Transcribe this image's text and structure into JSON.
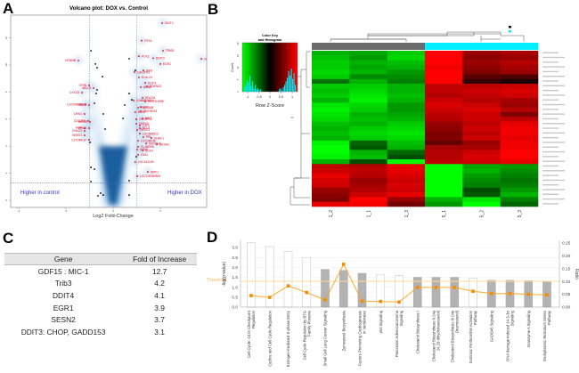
{
  "panels": {
    "a": "A",
    "b": "B",
    "c": "C",
    "d": "D"
  },
  "chart_data": [
    {
      "type": "scatter",
      "title": "Volcano plot: DOX vs. Control",
      "xlabel": "Log2 Fold-Change",
      "ylabel": "",
      "xlim": [
        -4.3,
        4
      ],
      "ylim": [
        -0.3,
        13.9
      ],
      "x_ticks": [
        -4,
        -2,
        0,
        2
      ],
      "y_ticks": [
        0,
        2,
        4,
        6,
        8,
        10,
        12
      ],
      "thresholds": {
        "log2fc": [
          -1,
          1
        ],
        "y": 1.3
      },
      "annotations": {
        "left": "Higher in control",
        "right": "Higher in DOX"
      },
      "colors": {
        "labeled": "#e0001b",
        "other": "#000000",
        "density": "#1f6fb4",
        "annotation": "#3333cc"
      },
      "labeled_points": [
        {
          "gene": "DDIT4",
          "x": 2.08,
          "y": 13.1
        },
        {
          "gene": "GTS1",
          "x": 1.21,
          "y": 11.8
        },
        {
          "gene": "TRIB3",
          "x": 2.11,
          "y": 11.05
        },
        {
          "gene": "DDIT3",
          "x": 1.7,
          "y": 10.5
        },
        {
          "gene": "PCK2",
          "x": 1.09,
          "y": 10.65
        },
        {
          "gene": "GDF15",
          "x": 3.74,
          "y": 10.45
        },
        {
          "gene": "EGR1",
          "x": 2.0,
          "y": 10.07
        },
        {
          "gene": "IER3",
          "x": 1.28,
          "y": 9.6
        },
        {
          "gene": "GALNTL1",
          "x": 0.91,
          "y": 9.47
        },
        {
          "gene": "KLHL24",
          "x": 1.09,
          "y": 9.08
        },
        {
          "gene": "CLIP3",
          "x": 1.36,
          "y": 8.68
        },
        {
          "gene": "CDKN2D",
          "x": 1.43,
          "y": 8.42
        },
        {
          "gene": "ADM2",
          "x": 1.17,
          "y": 8.36
        },
        {
          "gene": "PDCD4",
          "x": 1.25,
          "y": 7.57
        },
        {
          "gene": "HIST2H2BE",
          "x": 1.36,
          "y": 7.3
        },
        {
          "gene": "GABARAPL1",
          "x": 0.87,
          "y": 7.37
        },
        {
          "gene": "FAM116B",
          "x": 1.06,
          "y": 6.84
        },
        {
          "gene": "HYI",
          "x": 1.17,
          "y": 6.9
        },
        {
          "gene": "ZMYND15",
          "x": 1.17,
          "y": 6.58
        },
        {
          "gene": "BCK2",
          "x": 0.94,
          "y": 6.51
        },
        {
          "gene": "MNT",
          "x": 1.25,
          "y": 6.05
        },
        {
          "gene": "C9ORF41",
          "x": 0.98,
          "y": 5.99
        },
        {
          "gene": "LMTK3",
          "x": 0.98,
          "y": 5.66
        },
        {
          "gene": "TJP3",
          "x": 1.13,
          "y": 5.53
        },
        {
          "gene": "BCL6",
          "x": 1.13,
          "y": 5.33
        },
        {
          "gene": "PROS1",
          "x": 1.02,
          "y": 5.2
        },
        {
          "gene": "LOC645513",
          "x": 1.13,
          "y": 4.93
        },
        {
          "gene": "PPL",
          "x": 1.28,
          "y": 4.67
        },
        {
          "gene": "CHAC1",
          "x": 1.62,
          "y": 4.6
        },
        {
          "gene": "C17ORF39",
          "x": 1.06,
          "y": 4.4
        },
        {
          "gene": "NOTCH2",
          "x": 1.4,
          "y": 4.2
        },
        {
          "gene": "SESN2",
          "x": 1.85,
          "y": 4.14
        },
        {
          "gene": "FLJ46906",
          "x": 1.06,
          "y": 3.95
        },
        {
          "gene": "ASNS",
          "x": 1.02,
          "y": 3.75
        },
        {
          "gene": "SOX4",
          "x": 1.25,
          "y": 3.68
        },
        {
          "gene": "CA11",
          "x": 1.06,
          "y": 3.36
        },
        {
          "gene": "LOC441106",
          "x": 0.94,
          "y": 2.83
        },
        {
          "gene": "WIPI1",
          "x": 1.47,
          "y": 2.1
        },
        {
          "gene": "LOC100289500",
          "x": 1.02,
          "y": 1.78
        },
        {
          "gene": "GPNMB",
          "x": -1.47,
          "y": 10.33
        },
        {
          "gene": "TIPIN",
          "x": -1.02,
          "y": 8.49
        },
        {
          "gene": "ABLL3",
          "x": -0.83,
          "y": 8.29
        },
        {
          "gene": "CXXC5",
          "x": -1.32,
          "y": 7.96
        },
        {
          "gene": "LOC642955",
          "x": -1.17,
          "y": 7.1
        },
        {
          "gene": "HMBS",
          "x": -1.02,
          "y": 7.04
        },
        {
          "gene": "DKK1",
          "x": -1.21,
          "y": 6.38
        },
        {
          "gene": "CDC25A",
          "x": -1.06,
          "y": 5.86
        },
        {
          "gene": "BIRC5",
          "x": -0.98,
          "y": 5.79
        },
        {
          "gene": "PMF",
          "x": -1.21,
          "y": 5.33
        },
        {
          "gene": "PPIL5",
          "x": -1.02,
          "y": 5.33
        },
        {
          "gene": "CHAC2",
          "x": -1.21,
          "y": 5.13
        },
        {
          "gene": "INSIG1",
          "x": -1.21,
          "y": 4.8
        },
        {
          "gene": "C17ORF37",
          "x": -1.02,
          "y": 4.47
        }
      ],
      "other_points": [
        [
          -0.94,
          11.05
        ],
        [
          -0.75,
          10.07
        ],
        [
          -0.68,
          9.8
        ],
        [
          -0.45,
          9.14
        ],
        [
          -0.68,
          8.16
        ],
        [
          -0.72,
          7.89
        ],
        [
          -0.79,
          7.17
        ],
        [
          -0.42,
          6.38
        ],
        [
          -0.34,
          5.26
        ],
        [
          -0.98,
          4.28
        ],
        [
          0.68,
          10.46
        ],
        [
          0.94,
          9.6
        ],
        [
          0.68,
          7.89
        ],
        [
          0.79,
          7.43
        ],
        [
          0.49,
          7.04
        ],
        [
          0.42,
          6.05
        ],
        [
          0.98,
          3.22
        ],
        [
          -0.94,
          2.43
        ],
        [
          -0.79,
          2.3
        ],
        [
          -0.94,
          1.38
        ],
        [
          0.68,
          1.45
        ],
        [
          -0.53,
          0.53
        ],
        [
          -0.64,
          0.33
        ],
        [
          -0.42,
          0.39
        ],
        [
          0.68,
          0.39
        ]
      ]
    },
    {
      "type": "heatmap",
      "columns": [
        "1_2",
        "1_1",
        "1_3",
        "5_1",
        "5_2",
        "5_3"
      ],
      "column_groups": [
        "control",
        "control",
        "control",
        "DOX",
        "DOX",
        "DOX"
      ],
      "group_colors": {
        "control": "#6b6b6b",
        "DOX": "#00f0ff"
      },
      "color_key": {
        "title_line1": "Color Key",
        "title_line2": "and Histogram",
        "xlabel": "Row Z-Score",
        "ylabel": "Count",
        "x_ticks": [
          "-1",
          "-0.5",
          "0",
          "0.5",
          "1"
        ],
        "y_ticks": [
          "0",
          "5",
          "10",
          "15",
          "20"
        ],
        "low": "#00ff00",
        "mid": "#000000",
        "high": "#ff0000",
        "hist": "#00e5ee"
      },
      "values": [
        [
          -0.7,
          -0.65,
          -0.8,
          1,
          0.6,
          0.65
        ],
        [
          -0.75,
          -0.6,
          -0.85,
          1,
          0.55,
          0.6
        ],
        [
          -0.8,
          -0.7,
          -0.75,
          1,
          0.6,
          0.7
        ],
        [
          -0.8,
          -0.65,
          -0.7,
          0.95,
          0.55,
          0.65
        ],
        [
          -0.85,
          -0.7,
          -0.6,
          1,
          0.5,
          0.6
        ],
        [
          -0.8,
          -0.55,
          -0.55,
          1,
          0.35,
          0.3
        ],
        [
          -0.45,
          -0.7,
          -0.5,
          1,
          0.2,
          0.1
        ],
        [
          -0.8,
          -0.8,
          -0.7,
          0.75,
          0.75,
          0.8
        ],
        [
          -0.75,
          -0.85,
          -0.7,
          0.75,
          0.8,
          0.85
        ],
        [
          -0.8,
          -0.9,
          -0.75,
          0.7,
          0.75,
          0.8
        ],
        [
          -0.7,
          -0.95,
          -0.7,
          0.8,
          0.7,
          0.65
        ],
        [
          -0.9,
          -0.85,
          -0.6,
          0.85,
          0.8,
          0.6
        ],
        [
          -0.95,
          -0.8,
          -0.6,
          0.8,
          0.85,
          0.7
        ],
        [
          -0.9,
          -0.7,
          -0.65,
          0.75,
          0.8,
          0.5
        ],
        [
          -0.85,
          -0.75,
          -0.7,
          0.7,
          0.8,
          0.75
        ],
        [
          -0.75,
          -0.7,
          -0.8,
          0.6,
          0.75,
          0.9
        ],
        [
          -0.7,
          -0.8,
          -0.85,
          0.55,
          0.8,
          0.95
        ],
        [
          -0.75,
          -0.85,
          -0.9,
          0.5,
          0.75,
          0.95
        ],
        [
          -0.7,
          -0.8,
          -0.85,
          0.5,
          0.8,
          0.9
        ],
        [
          -0.95,
          -0.4,
          -0.75,
          0.4,
          0.6,
          0.95
        ],
        [
          -1,
          -0.35,
          -0.7,
          0.65,
          0.65,
          0.95
        ],
        [
          -1,
          -0.7,
          -0.4,
          0.7,
          0.8,
          1
        ],
        [
          -0.95,
          -0.75,
          -0.3,
          0.7,
          0.85,
          1
        ],
        [
          -0.7,
          -0.3,
          -1,
          0.75,
          0.8,
          0.9
        ],
        [
          0.75,
          0.7,
          0.9,
          -1,
          -0.65,
          -0.6
        ],
        [
          0.8,
          0.75,
          0.9,
          -1,
          -0.7,
          -0.55
        ],
        [
          0.9,
          0.7,
          0.85,
          -1,
          -0.6,
          -0.5
        ],
        [
          0.85,
          0.6,
          0.8,
          -1,
          -0.55,
          -0.45
        ],
        [
          0.8,
          0.65,
          0.85,
          -1,
          -0.5,
          -0.5
        ],
        [
          0.6,
          0.7,
          0.8,
          -1,
          -0.3,
          -0.6
        ],
        [
          0.55,
          0.8,
          0.9,
          -1,
          -0.35,
          -0.7
        ],
        [
          0.5,
          1,
          0.6,
          -0.7,
          -0.9,
          -0.5
        ],
        [
          0.9,
          0.95,
          0.45,
          -0.6,
          -1,
          -0.4
        ]
      ]
    },
    {
      "type": "table",
      "headers": [
        "Gene",
        "Fold of Increase"
      ],
      "rows": [
        [
          "GDF15 : MIC-1",
          "12.7"
        ],
        [
          "Trib3",
          "4.2"
        ],
        [
          "DDIT4",
          "4.1"
        ],
        [
          "EGR1",
          "3.9"
        ],
        [
          "SESN2",
          "3.7"
        ],
        [
          "DDIT3: CHOP, GADD153",
          "3.1"
        ]
      ]
    },
    {
      "type": "bar",
      "ylabel": "-log(p-value)",
      "ylabel_right": "Ratio",
      "ylim": [
        0,
        3.0
      ],
      "ylim_right": [
        0,
        0.25
      ],
      "y_ticks": [
        "0.0",
        "0.5",
        "1.0",
        "1.5",
        "2.0",
        "2.5",
        "3.0"
      ],
      "y_ticks_right": [
        "0.00",
        "0.05",
        "0.10",
        "0.15",
        "0.20",
        "0.25"
      ],
      "threshold": {
        "label": "Threshold",
        "value": 1.3
      },
      "colors": {
        "bar_filled": "#b3b3b3",
        "bar_open": "#ffffff",
        "ratio_line": "#f5a623",
        "ratio_marker": "#f28c00",
        "threshold": "#ffd9a0"
      },
      "categories": [
        {
          "lines": [
            "Cell Cycle: G1/S Checkpoint",
            "Regulation"
          ],
          "value": 3.25,
          "filled": false,
          "ratio": 0.045
        },
        {
          "lines": [
            "Cyclins and Cell Cycle Regulation"
          ],
          "value": 3.05,
          "filled": false,
          "ratio": 0.038
        },
        {
          "lines": [
            "Estrogen-mediated S-phase Entry"
          ],
          "value": 2.8,
          "filled": false,
          "ratio": 0.083
        },
        {
          "lines": [
            "Cell Cycle Regulation by BTG",
            "Family Proteins"
          ],
          "value": 2.5,
          "filled": false,
          "ratio": 0.057
        },
        {
          "lines": [
            "Small Cell Lung Cancer Signaling"
          ],
          "value": 1.9,
          "filled": true,
          "ratio": 0.028
        },
        {
          "lines": [
            "Zymosterol Biosynthesis"
          ],
          "value": 1.85,
          "filled": true,
          "ratio": 0.167
        },
        {
          "lines": [
            "Factors Promoting Cardiogenesis",
            "in Vertebrates"
          ],
          "value": 1.7,
          "filled": true,
          "ratio": 0.023
        },
        {
          "lines": [
            "p53 Signaling"
          ],
          "value": 1.65,
          "filled": false,
          "ratio": 0.022
        },
        {
          "lines": [
            "Pancreatic Adenocarcinoma",
            "Signaling"
          ],
          "value": 1.6,
          "filled": false,
          "ratio": 0.02
        },
        {
          "lines": [
            "Cholesterol Biosynthesis I"
          ],
          "value": 1.5,
          "filled": true,
          "ratio": 0.077
        },
        {
          "lines": [
            "Cholesterol Biosynthesis II (via",
            "24,25-dihydrolanosterol)"
          ],
          "value": 1.5,
          "filled": true,
          "ratio": 0.077
        },
        {
          "lines": [
            "Cholesterol Biosynthesis III (via",
            "Desmosterol)"
          ],
          "value": 1.5,
          "filled": true,
          "ratio": 0.077
        },
        {
          "lines": [
            "Extrinsic Prothrombin Activation",
            "Pathway"
          ],
          "value": 1.45,
          "filled": false,
          "ratio": 0.062
        },
        {
          "lines": [
            "GADD45 Signaling"
          ],
          "value": 1.35,
          "filled": true,
          "ratio": 0.053
        },
        {
          "lines": [
            "DNA damage-induced 14-3-3σ",
            "Signaling"
          ],
          "value": 1.35,
          "filled": true,
          "ratio": 0.053
        },
        {
          "lines": [
            "Granzyme A Signaling"
          ],
          "value": 1.33,
          "filled": true,
          "ratio": 0.05
        },
        {
          "lines": [
            "Endoplasmic Reticulum Stress",
            "Pathway"
          ],
          "value": 1.3,
          "filled": true,
          "ratio": 0.048
        }
      ]
    }
  ]
}
